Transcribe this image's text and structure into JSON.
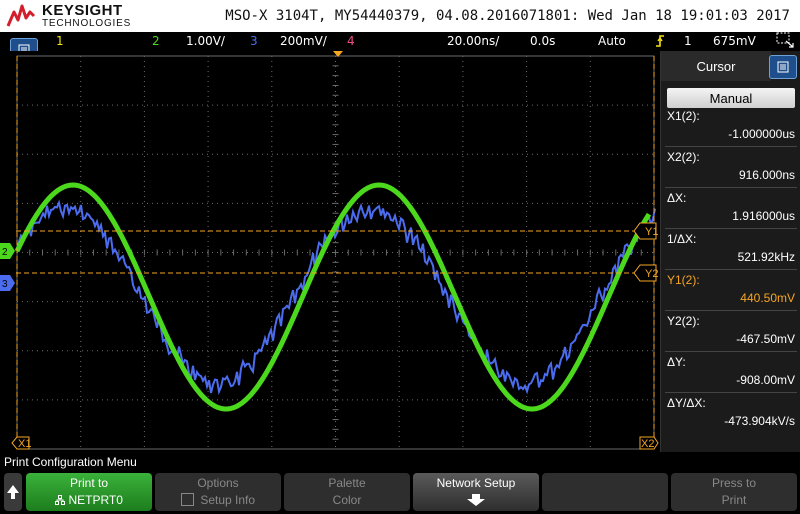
{
  "brand": {
    "name": "KEYSIGHT",
    "sub": "TECHNOLOGIES"
  },
  "header": {
    "text": "MSO-X 3104T, MY54440379, 04.08.2016071801: Wed Jan 18 19:01:03 2017"
  },
  "status": {
    "ch1": "1",
    "ch2": "2",
    "ch2_scale": "1.00V/",
    "ch3": "3",
    "ch3_scale": "200mV/",
    "ch4": "4",
    "timebase": "20.00ns/",
    "delay": "0.0s",
    "mode": "Auto",
    "trig_source": "1",
    "trig_level": "675mV"
  },
  "screen_labels": {
    "y1": "Y1",
    "y2": "Y2",
    "x1": "X1",
    "x2": "X2",
    "ch2": "2",
    "ch3": "3"
  },
  "cursor_panel": {
    "title": "Cursor",
    "mode": "Manual",
    "rows": [
      {
        "label": "X1(2):",
        "value": "-1.000000us"
      },
      {
        "label": "X2(2):",
        "value": "916.000ns"
      },
      {
        "label": "ΔX:",
        "value": "1.916000us"
      },
      {
        "label": "1/ΔX:",
        "value": "521.92kHz"
      },
      {
        "label": "Y1(2):",
        "value": "440.50mV"
      },
      {
        "label": "Y2(2):",
        "value": "-467.50mV"
      },
      {
        "label": "ΔY:",
        "value": "-908.00mV"
      },
      {
        "label": "ΔY/ΔX:",
        "value": "-473.904kV/s"
      }
    ]
  },
  "menu": {
    "title": "Print Configuration Menu",
    "softkeys": [
      {
        "line1": "Print to",
        "line2": "NETPRT0"
      },
      {
        "line1": "Options",
        "line2": "Setup Info"
      },
      {
        "line1": "Palette",
        "line2": "Color"
      },
      {
        "line1": "Network Setup",
        "line2": ""
      },
      {
        "line1": "",
        "line2": ""
      },
      {
        "line1": "Press to",
        "line2": "Print"
      }
    ]
  },
  "colors": {
    "ch1": "#f5e214",
    "ch2": "#4cd81c",
    "ch3": "#4c6cf0",
    "ch4": "#f04c8c",
    "cursor": "#f5a623",
    "grid": "#6a6a6a",
    "accent": "#1e4f8c"
  }
}
